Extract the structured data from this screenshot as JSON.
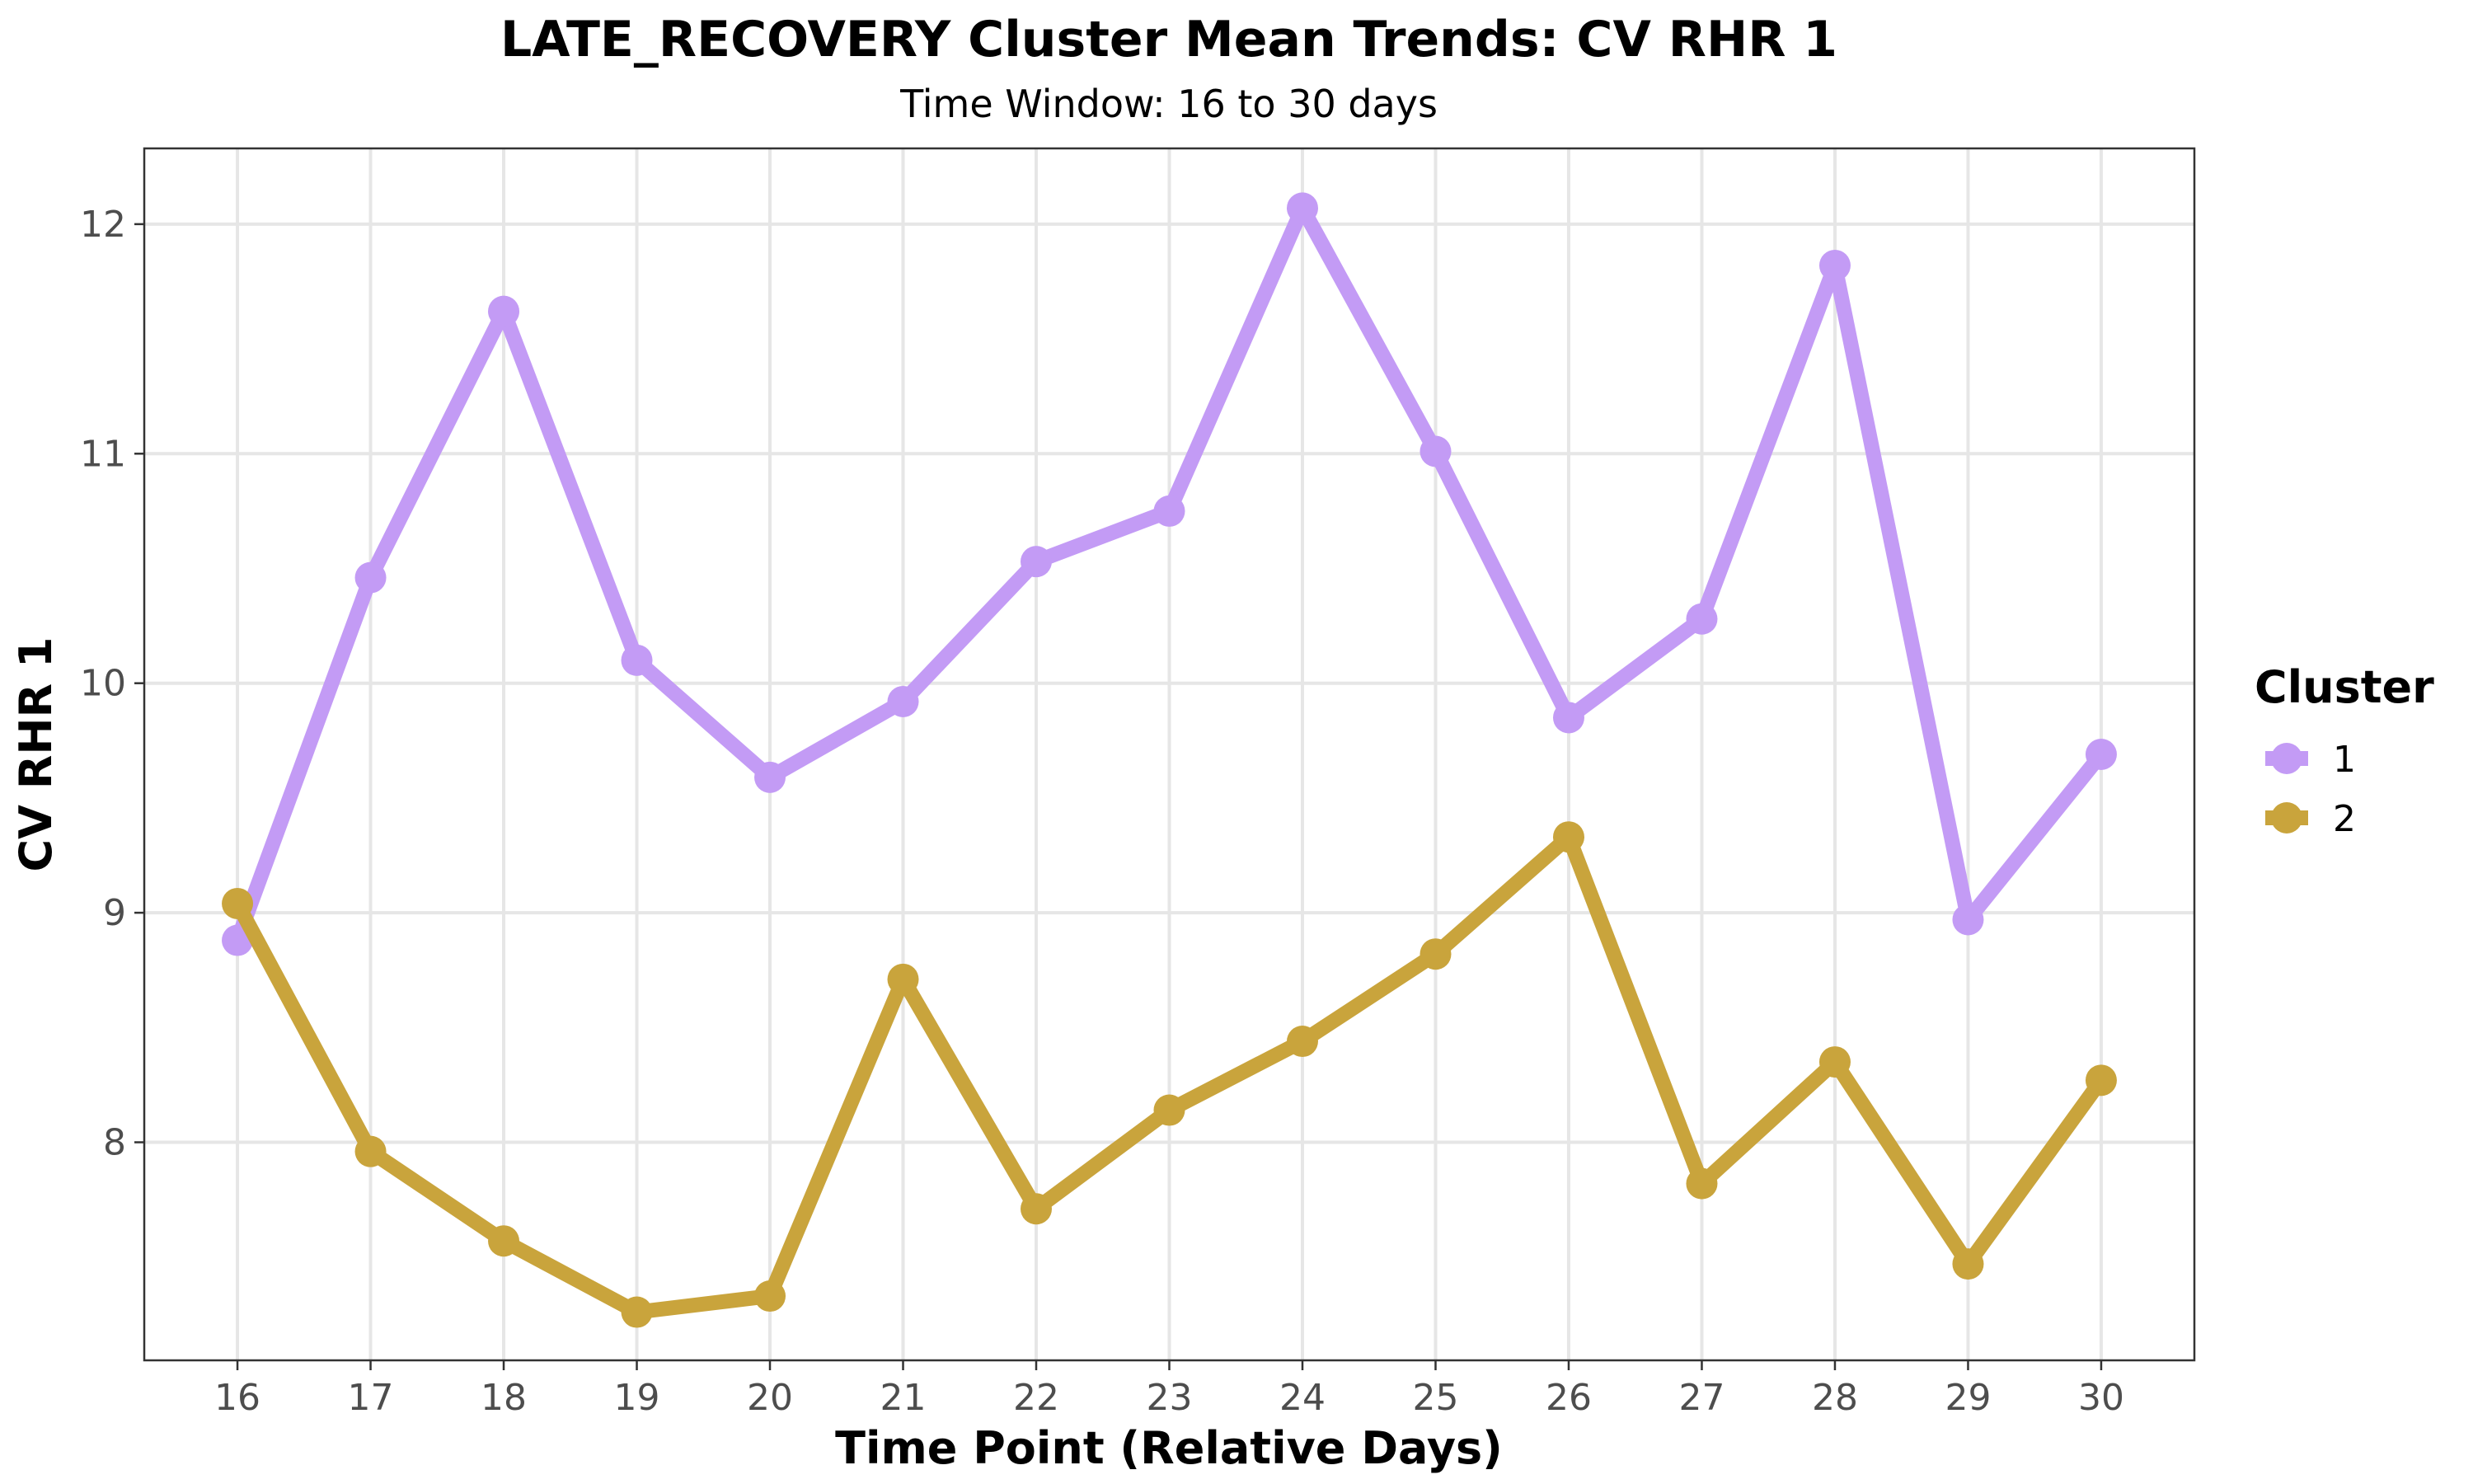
{
  "chart_data": {
    "type": "line",
    "title": "LATE_RECOVERY Cluster Mean Trends: CV RHR 1",
    "subtitle": "Time Window: 16 to 30 days",
    "xlabel": "Time Point (Relative Days)",
    "ylabel": "CV RHR 1",
    "x": [
      16,
      17,
      18,
      19,
      20,
      21,
      22,
      23,
      24,
      25,
      26,
      27,
      28,
      29,
      30
    ],
    "xlim": [
      15.3,
      30.7
    ],
    "ylim": [
      7.05,
      12.33
    ],
    "yticks": [
      8,
      9,
      10,
      11,
      12
    ],
    "grid": true,
    "legend": {
      "title": "Cluster",
      "position": "right"
    },
    "series": [
      {
        "name": "1",
        "color": "#c39bf5",
        "values": [
          8.88,
          10.46,
          11.62,
          10.1,
          9.59,
          9.92,
          10.53,
          10.75,
          12.07,
          11.01,
          9.85,
          10.28,
          11.82,
          8.97,
          9.69
        ]
      },
      {
        "name": "2",
        "color": "#c9a43c",
        "values": [
          9.04,
          7.96,
          7.57,
          7.26,
          7.33,
          8.71,
          7.71,
          8.14,
          8.44,
          8.82,
          9.33,
          7.82,
          8.35,
          7.47,
          8.27
        ]
      }
    ]
  }
}
